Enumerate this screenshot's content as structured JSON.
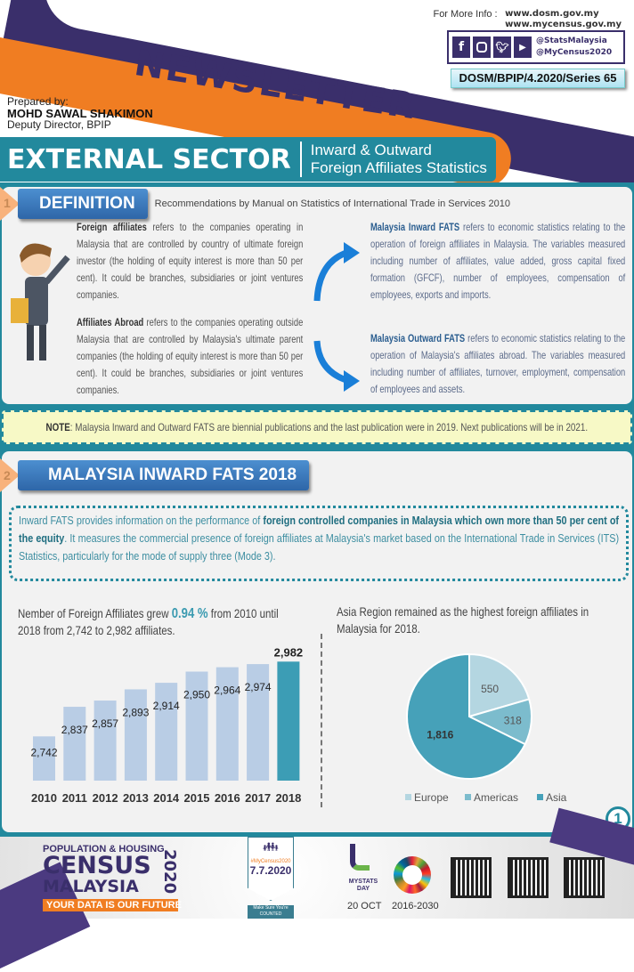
{
  "header": {
    "title": "NEWSLETTER",
    "more_info_label": "For More Info :",
    "urls": [
      "www.dosm.gov.my",
      "www.mycensus.gov.my"
    ],
    "social_icons": [
      "facebook-icon",
      "instagram-icon",
      "twitter-icon",
      "youtube-icon"
    ],
    "handles": [
      "@StatsMalaysia",
      "@MyCensus2020"
    ],
    "series": "DOSM/BPIP/4.2020/Series 65",
    "prepared_by_label": "Prepared by:",
    "author": "MOHD SAWAL SHAKIMON",
    "author_title": "Deputy Director, BPIP",
    "sector": "EXTERNAL SECTOR",
    "subtitle_line1": "Inward & Outward",
    "subtitle_line2": "Foreign Affiliates Statistics",
    "colors": {
      "purple": "#3a2f6b",
      "orange": "#f07d22",
      "teal": "#22899d"
    }
  },
  "section1": {
    "number": "1",
    "title": "DEFINITION",
    "caption": "Recommendations by Manual on Statistics of International Trade in Services 2010",
    "foreign_affiliates": {
      "term": "Foreign affiliates",
      "text": " refers to the companies operating in Malaysia that are controlled by country of ultimate foreign investor (the holding of equity interest is more than 50 per cent). It could be branches, subsidiaries or joint ventures companies."
    },
    "affiliates_abroad": {
      "term": "Affiliates Abroad",
      "text": " refers to the companies operating outside Malaysia that are controlled by Malaysia's ultimate parent companies (the holding of equity interest is more than 50 per cent). It could be branches, subsidiaries or joint ventures companies."
    },
    "inward_fats": {
      "term": "Malaysia Inward FATS",
      "text": " refers to economic statistics relating to the operation of foreign affiliates in Malaysia. The variables measured including number of affiliates, value added, gross capital fixed formation (GFCF), number of employees, compensation of employees, exports and imports."
    },
    "outward_fats": {
      "term": "Malaysia Outward FATS",
      "text": " refers to economic statistics relating to the operation of Malaysia's affiliates abroad. The variables measured including number of affiliates, turnover, employment, compensation of employees and assets."
    }
  },
  "note": {
    "label": "NOTE",
    "text": ": Malaysia Inward and Outward FATS are biennial publications and the last publication were in 2019. Next publications will be in 2021."
  },
  "section2": {
    "number": "2",
    "title": "MALAYSIA INWARD FATS 2018",
    "intro": {
      "p1": "Inward FATS provides information on the performance of ",
      "bold": "foreign controlled companies in Malaysia which own more than 50 per cent of the equity",
      "p2": ". It measures the commercial presence of foreign affiliates at Malaysia's market based on the International Trade in Services (ITS) Statistics, particularly for the mode of supply three (Mode 3)."
    },
    "bar_caption": {
      "p1": "Nember of Foreign Affiliates grew ",
      "highlight": "0.94 %",
      "p2": " from 2010 until 2018 from 2,742 to 2,982 affiliates."
    },
    "pie_caption": "Asia Region remained as the highest foreign affiliates in Malaysia for 2018."
  },
  "chart_data": [
    {
      "type": "bar",
      "categories": [
        "2010",
        "2011",
        "2012",
        "2013",
        "2014",
        "2015",
        "2016",
        "2017",
        "2018"
      ],
      "values": [
        2742,
        2837,
        2857,
        2893,
        2914,
        2950,
        2964,
        2974,
        2982
      ],
      "data_labels": [
        "2,742",
        "2,837",
        "2,857",
        "2,893",
        "2,914",
        "2,950",
        "2,964",
        "2,974",
        "2,982"
      ],
      "colors": {
        "default": "#b9cde5",
        "highlight": "#3c9db5"
      },
      "ylim": [
        2600,
        3000
      ],
      "grid": false
    },
    {
      "type": "pie",
      "categories": [
        "Europe",
        "Americas",
        "Asia"
      ],
      "values": [
        550,
        318,
        1816
      ],
      "data_labels": [
        "550",
        "318",
        "1,816"
      ],
      "colors": [
        "#b4d6e1",
        "#7cbccd",
        "#46a1b9"
      ],
      "legend": "bottom"
    }
  ],
  "page_number": "1",
  "footer": {
    "census_line1": "POPULATION & HOUSING",
    "census_line2": "CENSUS",
    "census_line3": "MALAYSIA",
    "census_year": "2020",
    "tagline": "YOUR DATA IS OUR FUTURE",
    "hashtag": "#MyCensus2020",
    "census_date": "7.7.2020",
    "counted": "Make Sure You're COUNTED",
    "mystats": "MYSTATS DAY",
    "mystats_date": "20 OCT",
    "sdg_years": "2016-2030"
  }
}
